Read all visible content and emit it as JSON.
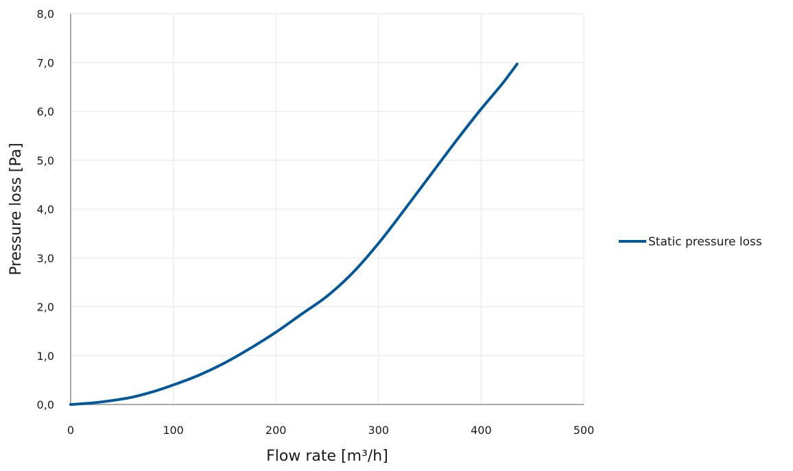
{
  "chart_data": {
    "type": "line",
    "title": "",
    "xlabel": "Flow rate [m³/h]",
    "ylabel": "Pressure loss [Pa]",
    "xlim": [
      0,
      500
    ],
    "ylim": [
      0,
      8
    ],
    "x_ticks": [
      "0",
      "100",
      "200",
      "300",
      "400",
      "500"
    ],
    "y_ticks": [
      "0,0",
      "1,0",
      "2,0",
      "3,0",
      "4,0",
      "5,0",
      "6,0",
      "7,0",
      "8,0"
    ],
    "grid": true,
    "legend_position": "right",
    "series": [
      {
        "name": "Static pressure loss",
        "color": "#00579a",
        "x": [
          0,
          20,
          40,
          60,
          80,
          100,
          125,
          150,
          175,
          200,
          225,
          250,
          275,
          300,
          325,
          350,
          375,
          400,
          420,
          435
        ],
        "y": [
          0.0,
          0.03,
          0.08,
          0.15,
          0.26,
          0.4,
          0.6,
          0.85,
          1.15,
          1.48,
          1.85,
          2.22,
          2.7,
          3.3,
          3.98,
          4.68,
          5.38,
          6.05,
          6.55,
          6.97
        ]
      }
    ]
  }
}
